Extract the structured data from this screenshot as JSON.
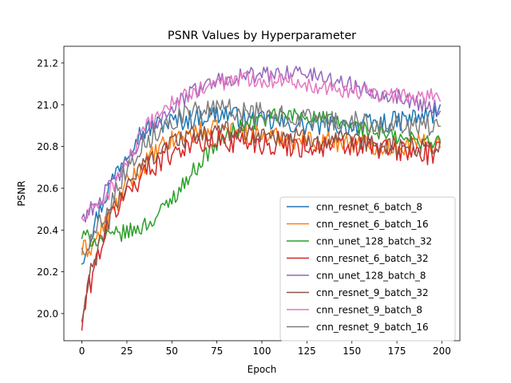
{
  "chart_data": {
    "type": "line",
    "title": "PSNR Values by Hyperparameter",
    "xlabel": "Epoch",
    "ylabel": "PSNR",
    "xlim": [
      -10,
      210
    ],
    "ylim": [
      19.87,
      21.28
    ],
    "xticks": [
      0,
      25,
      50,
      75,
      100,
      125,
      150,
      175,
      200
    ],
    "yticks": [
      20.0,
      20.2,
      20.4,
      20.6,
      20.8,
      21.0,
      21.2
    ],
    "xtick_labels": [
      "0",
      "25",
      "50",
      "75",
      "100",
      "125",
      "150",
      "175",
      "200"
    ],
    "ytick_labels": [
      "20.0",
      "20.2",
      "20.4",
      "20.6",
      "20.8",
      "21.0",
      "21.2"
    ],
    "grid": false,
    "legend_position": "lower right",
    "epochs": {
      "start": 0,
      "end": 199
    },
    "series": [
      {
        "name": "cnn_resnet_6_batch_8",
        "color": "#1f77b4",
        "points": [
          [
            0,
            20.26
          ],
          [
            5,
            20.38
          ],
          [
            10,
            20.5
          ],
          [
            20,
            20.7
          ],
          [
            30,
            20.85
          ],
          [
            40,
            20.9
          ],
          [
            50,
            20.92
          ],
          [
            60,
            20.93
          ],
          [
            70,
            20.95
          ],
          [
            80,
            20.96
          ],
          [
            90,
            20.93
          ],
          [
            100,
            20.92
          ],
          [
            125,
            20.9
          ],
          [
            150,
            20.9
          ],
          [
            175,
            20.92
          ],
          [
            199,
            20.96
          ]
        ],
        "noise": 0.05
      },
      {
        "name": "cnn_resnet_6_batch_16",
        "color": "#ff7f0e",
        "points": [
          [
            0,
            20.3
          ],
          [
            5,
            20.32
          ],
          [
            15,
            20.45
          ],
          [
            25,
            20.62
          ],
          [
            35,
            20.72
          ],
          [
            45,
            20.8
          ],
          [
            55,
            20.85
          ],
          [
            65,
            20.87
          ],
          [
            80,
            20.88
          ],
          [
            100,
            20.85
          ],
          [
            125,
            20.83
          ],
          [
            150,
            20.82
          ],
          [
            175,
            20.8
          ],
          [
            199,
            20.82
          ]
        ],
        "noise": 0.05
      },
      {
        "name": "cnn_unet_128_batch_32",
        "color": "#2ca02c",
        "points": [
          [
            0,
            20.37
          ],
          [
            10,
            20.35
          ],
          [
            20,
            20.38
          ],
          [
            30,
            20.4
          ],
          [
            40,
            20.45
          ],
          [
            45,
            20.5
          ],
          [
            50,
            20.55
          ],
          [
            60,
            20.66
          ],
          [
            70,
            20.77
          ],
          [
            80,
            20.85
          ],
          [
            90,
            20.9
          ],
          [
            100,
            20.93
          ],
          [
            110,
            20.95
          ],
          [
            125,
            20.95
          ],
          [
            150,
            20.9
          ],
          [
            175,
            20.84
          ],
          [
            199,
            20.82
          ]
        ],
        "noise": 0.04
      },
      {
        "name": "cnn_resnet_6_batch_32",
        "color": "#d62728",
        "points": [
          [
            0,
            19.93
          ],
          [
            3,
            20.1
          ],
          [
            8,
            20.25
          ],
          [
            15,
            20.45
          ],
          [
            25,
            20.58
          ],
          [
            35,
            20.68
          ],
          [
            45,
            20.75
          ],
          [
            55,
            20.8
          ],
          [
            70,
            20.82
          ],
          [
            85,
            20.83
          ],
          [
            100,
            20.82
          ],
          [
            125,
            20.8
          ],
          [
            150,
            20.8
          ],
          [
            175,
            20.78
          ],
          [
            199,
            20.76
          ]
        ],
        "noise": 0.06
      },
      {
        "name": "cnn_unet_128_batch_8",
        "color": "#9467bd",
        "points": [
          [
            0,
            20.46
          ],
          [
            5,
            20.5
          ],
          [
            15,
            20.6
          ],
          [
            25,
            20.72
          ],
          [
            35,
            20.85
          ],
          [
            45,
            20.95
          ],
          [
            55,
            21.02
          ],
          [
            65,
            21.08
          ],
          [
            75,
            21.12
          ],
          [
            90,
            21.14
          ],
          [
            100,
            21.14
          ],
          [
            115,
            21.16
          ],
          [
            125,
            21.15
          ],
          [
            140,
            21.12
          ],
          [
            155,
            21.08
          ],
          [
            175,
            21.04
          ],
          [
            199,
            20.98
          ]
        ],
        "noise": 0.04
      },
      {
        "name": "cnn_resnet_9_batch_32",
        "color": "#8c564b",
        "points": [
          [
            0,
            19.96
          ],
          [
            5,
            20.2
          ],
          [
            15,
            20.45
          ],
          [
            25,
            20.62
          ],
          [
            35,
            20.72
          ],
          [
            45,
            20.8
          ],
          [
            55,
            20.84
          ],
          [
            70,
            20.86
          ],
          [
            85,
            20.88
          ],
          [
            100,
            20.86
          ],
          [
            125,
            20.84
          ],
          [
            150,
            20.82
          ],
          [
            175,
            20.8
          ],
          [
            199,
            20.8
          ]
        ],
        "noise": 0.05
      },
      {
        "name": "cnn_resnet_9_batch_8",
        "color": "#e377c2",
        "points": [
          [
            0,
            20.45
          ],
          [
            5,
            20.48
          ],
          [
            15,
            20.58
          ],
          [
            25,
            20.72
          ],
          [
            35,
            20.88
          ],
          [
            45,
            20.98
          ],
          [
            55,
            21.03
          ],
          [
            65,
            21.07
          ],
          [
            75,
            21.1
          ],
          [
            90,
            21.13
          ],
          [
            100,
            21.12
          ],
          [
            115,
            21.12
          ],
          [
            125,
            21.1
          ],
          [
            140,
            21.08
          ],
          [
            155,
            21.06
          ],
          [
            175,
            21.04
          ],
          [
            199,
            21.05
          ]
        ],
        "noise": 0.04
      },
      {
        "name": "cnn_resnet_9_batch_16",
        "color": "#7f7f7f",
        "points": [
          [
            0,
            20.3
          ],
          [
            5,
            20.35
          ],
          [
            15,
            20.52
          ],
          [
            25,
            20.7
          ],
          [
            35,
            20.82
          ],
          [
            45,
            20.9
          ],
          [
            55,
            20.95
          ],
          [
            65,
            20.97
          ],
          [
            80,
            20.98
          ],
          [
            100,
            20.96
          ],
          [
            125,
            20.93
          ],
          [
            150,
            20.92
          ],
          [
            175,
            20.9
          ],
          [
            199,
            20.9
          ]
        ],
        "noise": 0.05
      }
    ]
  }
}
